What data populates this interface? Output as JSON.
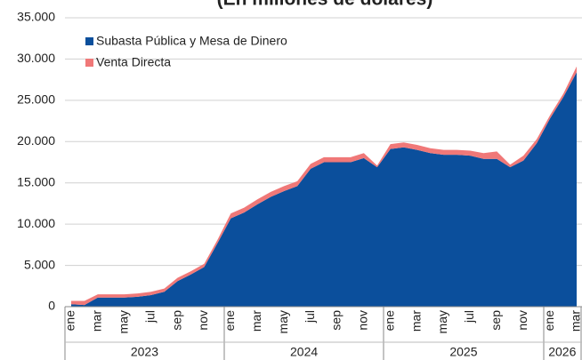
{
  "chart_data": {
    "type": "stacked_area",
    "title": "(En millones de dólares)",
    "categories": [
      "ene",
      null,
      "mar",
      null,
      "may",
      null,
      "jul",
      null,
      "sep",
      null,
      "nov",
      null,
      "ene",
      null,
      "mar",
      null,
      "may",
      null,
      "jul",
      null,
      "sep",
      null,
      "nov",
      null,
      "ene",
      null,
      "mar",
      null,
      "may",
      null,
      "jul",
      null,
      "sep",
      null,
      "nov",
      null,
      "ene",
      null,
      "mar"
    ],
    "groups": [
      {
        "label": "2023",
        "start": 0,
        "end": 11
      },
      {
        "label": "2024",
        "start": 12,
        "end": 23
      },
      {
        "label": "2025",
        "start": 24,
        "end": 35
      },
      {
        "label": "2026",
        "start": 36,
        "end": 38
      }
    ],
    "series": [
      {
        "name": "Subasta Pública y Mesa de Dinero",
        "color": "#0b4f9c",
        "values": [
          300,
          200,
          1100,
          1100,
          1100,
          1200,
          1400,
          1800,
          3100,
          3900,
          4800,
          7700,
          10700,
          11400,
          12400,
          13300,
          14000,
          14600,
          16700,
          17500,
          17500,
          17500,
          18000,
          16900,
          19100,
          19300,
          19000,
          18600,
          18400,
          18400,
          18300,
          17900,
          17900,
          16900,
          17700,
          19800,
          22800,
          25400,
          28400
        ]
      },
      {
        "name": "Venta Directa",
        "color": "#f07878",
        "values": [
          400,
          500,
          400,
          400,
          400,
          400,
          400,
          400,
          400,
          400,
          400,
          400,
          600,
          600,
          600,
          600,
          600,
          600,
          600,
          600,
          600,
          600,
          600,
          200,
          600,
          600,
          600,
          600,
          600,
          600,
          600,
          700,
          900,
          300,
          600,
          500,
          400,
          400,
          700
        ]
      }
    ],
    "ylim": [
      0,
      35000
    ],
    "yticks": [
      {
        "value": 0,
        "label": "0"
      },
      {
        "value": 5000,
        "label": "5.000"
      },
      {
        "value": 10000,
        "label": "10.000"
      },
      {
        "value": 15000,
        "label": "15.000"
      },
      {
        "value": 20000,
        "label": "20.000"
      },
      {
        "value": 25000,
        "label": "25.000"
      },
      {
        "value": 30000,
        "label": "30.000"
      },
      {
        "value": 35000,
        "label": "35.000"
      }
    ],
    "grid": true,
    "legend": "top-left"
  }
}
